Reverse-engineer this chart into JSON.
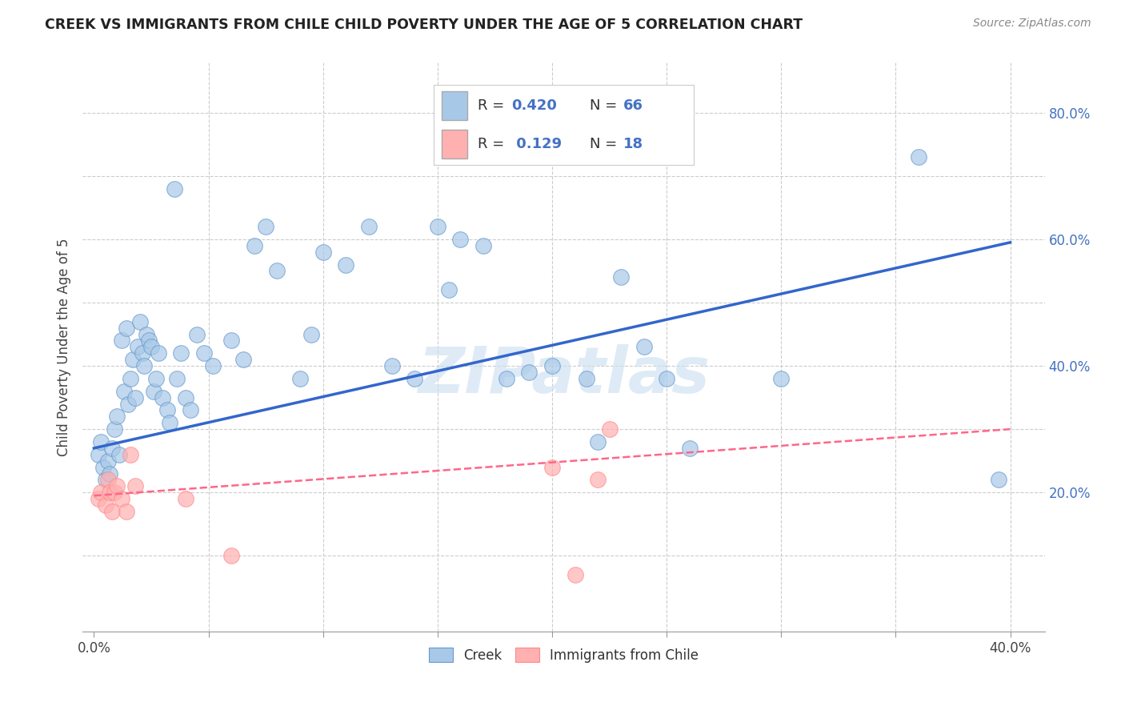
{
  "title": "CREEK VS IMMIGRANTS FROM CHILE CHILD POVERTY UNDER THE AGE OF 5 CORRELATION CHART",
  "source": "Source: ZipAtlas.com",
  "ylabel_label": "Child Poverty Under the Age of 5",
  "xlim": [
    -0.005,
    0.415
  ],
  "ylim": [
    -0.02,
    0.88
  ],
  "x_ticks": [
    0.0,
    0.05,
    0.1,
    0.15,
    0.2,
    0.25,
    0.3,
    0.35,
    0.4
  ],
  "x_tick_labels": [
    "0.0%",
    "",
    "",
    "",
    "",
    "",
    "",
    "",
    "40.0%"
  ],
  "y_ticks": [
    0.0,
    0.1,
    0.2,
    0.3,
    0.4,
    0.5,
    0.6,
    0.7,
    0.8
  ],
  "y_tick_labels": [
    "",
    "",
    "20.0%",
    "",
    "40.0%",
    "",
    "60.0%",
    "",
    "80.0%"
  ],
  "creek_color": "#a8c8e8",
  "creek_edge_color": "#6699cc",
  "chile_color": "#ffb0b0",
  "chile_edge_color": "#ff8888",
  "creek_line_color": "#3366cc",
  "chile_line_color": "#ff6688",
  "background_color": "#ffffff",
  "grid_color": "#cccccc",
  "watermark": "ZIPatlas",
  "watermark_color": "#c8dff0",
  "label_color": "#4472c4",
  "creek_scatter_x": [
    0.002,
    0.003,
    0.004,
    0.005,
    0.006,
    0.007,
    0.008,
    0.009,
    0.01,
    0.011,
    0.012,
    0.013,
    0.014,
    0.015,
    0.016,
    0.017,
    0.018,
    0.019,
    0.02,
    0.021,
    0.022,
    0.023,
    0.024,
    0.025,
    0.026,
    0.027,
    0.028,
    0.03,
    0.032,
    0.033,
    0.035,
    0.036,
    0.038,
    0.04,
    0.042,
    0.045,
    0.048,
    0.052,
    0.06,
    0.065,
    0.07,
    0.075,
    0.08,
    0.09,
    0.095,
    0.1,
    0.11,
    0.12,
    0.13,
    0.14,
    0.15,
    0.155,
    0.16,
    0.17,
    0.18,
    0.19,
    0.2,
    0.215,
    0.22,
    0.23,
    0.24,
    0.25,
    0.26,
    0.3,
    0.36,
    0.395
  ],
  "creek_scatter_y": [
    0.26,
    0.28,
    0.24,
    0.22,
    0.25,
    0.23,
    0.27,
    0.3,
    0.32,
    0.26,
    0.44,
    0.36,
    0.46,
    0.34,
    0.38,
    0.41,
    0.35,
    0.43,
    0.47,
    0.42,
    0.4,
    0.45,
    0.44,
    0.43,
    0.36,
    0.38,
    0.42,
    0.35,
    0.33,
    0.31,
    0.68,
    0.38,
    0.42,
    0.35,
    0.33,
    0.45,
    0.42,
    0.4,
    0.44,
    0.41,
    0.59,
    0.62,
    0.55,
    0.38,
    0.45,
    0.58,
    0.56,
    0.62,
    0.4,
    0.38,
    0.62,
    0.52,
    0.6,
    0.59,
    0.38,
    0.39,
    0.4,
    0.38,
    0.28,
    0.54,
    0.43,
    0.38,
    0.27,
    0.38,
    0.73,
    0.22
  ],
  "chile_scatter_x": [
    0.002,
    0.003,
    0.005,
    0.006,
    0.007,
    0.008,
    0.009,
    0.01,
    0.012,
    0.014,
    0.016,
    0.018,
    0.04,
    0.06,
    0.2,
    0.21,
    0.22,
    0.225
  ],
  "chile_scatter_y": [
    0.19,
    0.2,
    0.18,
    0.22,
    0.2,
    0.17,
    0.2,
    0.21,
    0.19,
    0.17,
    0.26,
    0.21,
    0.19,
    0.1,
    0.24,
    0.07,
    0.22,
    0.3
  ],
  "creek_trendline_x": [
    0.0,
    0.4
  ],
  "creek_trendline_y": [
    0.27,
    0.595
  ],
  "chile_trendline_x": [
    0.0,
    0.4
  ],
  "chile_trendline_y": [
    0.195,
    0.3
  ]
}
